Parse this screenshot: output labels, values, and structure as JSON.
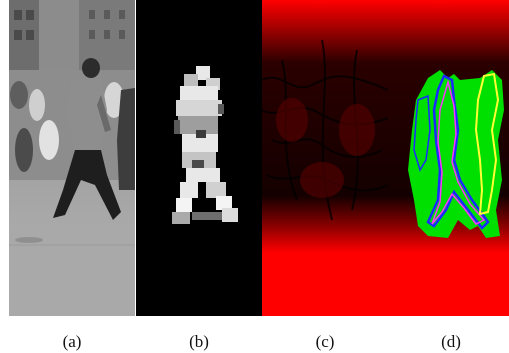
{
  "figure": {
    "panels": [
      {
        "id": "a",
        "label": "(a)",
        "content": "grayscale-street-photo"
      },
      {
        "id": "b",
        "label": "(b)",
        "content": "foreground-probability-map"
      },
      {
        "id": "c",
        "label": "(c)",
        "content": "distance-transform-red"
      },
      {
        "id": "d",
        "label": "(d)",
        "content": "segmentation-contours-overlay"
      }
    ],
    "colors": {
      "red": "#ff0000",
      "dark": "#000000",
      "green": "#00e000",
      "blue": "#1a2aff",
      "magenta": "#ff33ff",
      "yellow": "#ffff33"
    }
  }
}
